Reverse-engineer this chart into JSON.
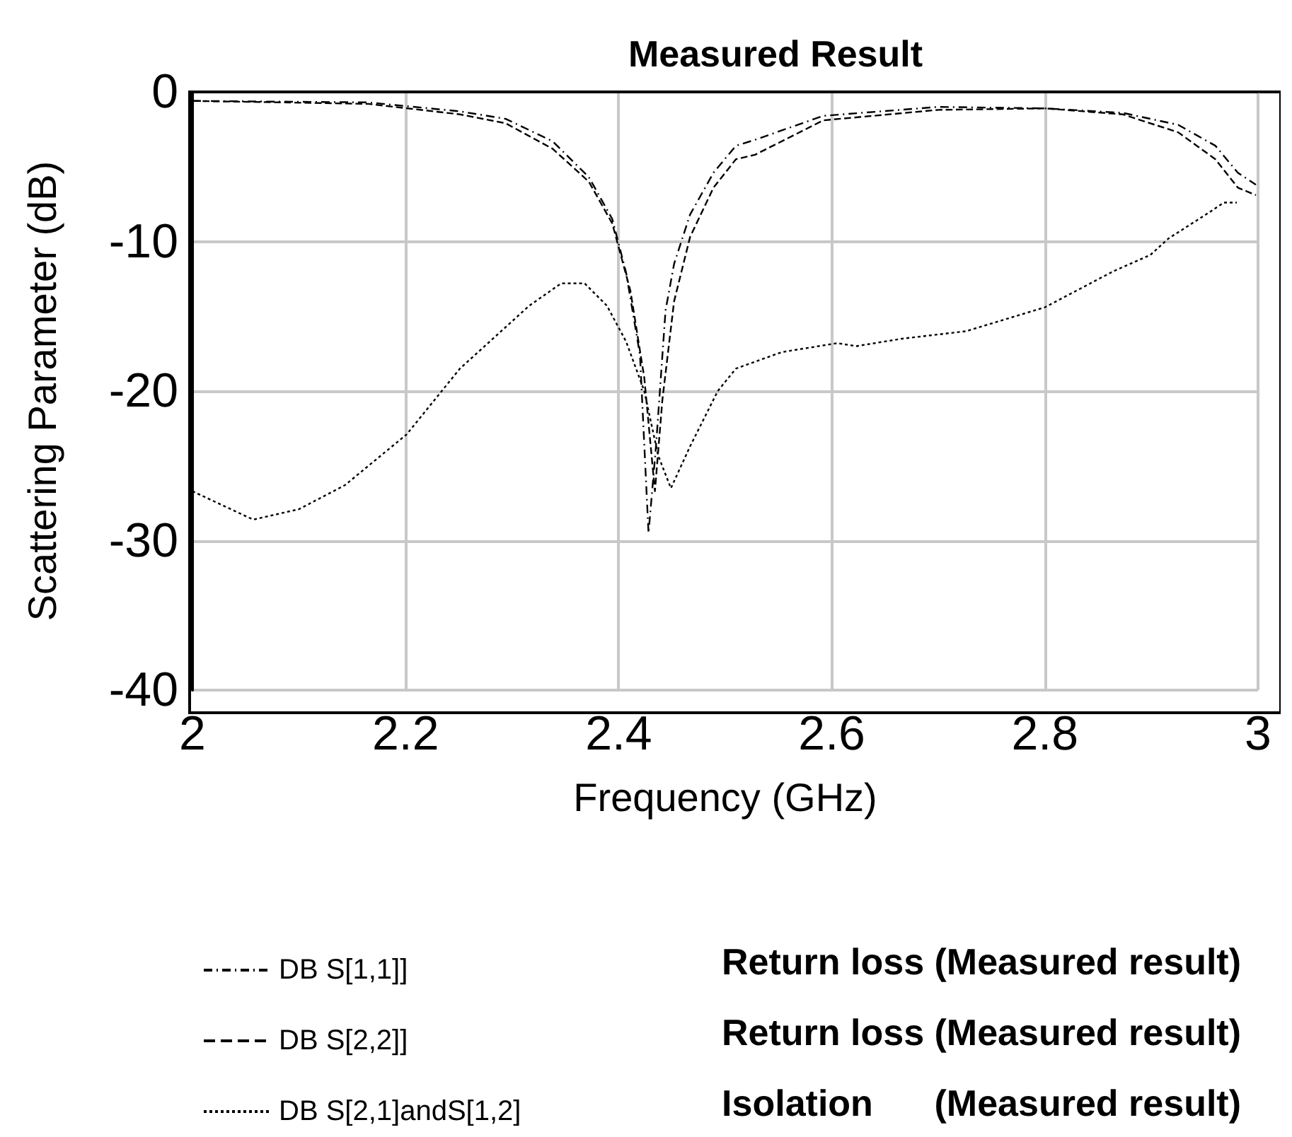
{
  "chart_data": {
    "type": "line",
    "title": "Measured Result",
    "xlabel": "Frequency (GHz)",
    "ylabel": "Scattering Parameter (dB)",
    "xlim": [
      2,
      3
    ],
    "xticks": [
      2,
      2.2,
      2.4,
      2.6,
      2.8,
      3
    ],
    "ylim": [
      -40,
      0
    ],
    "yticks": [
      -40,
      -30,
      -20,
      -10,
      0
    ],
    "grid": true,
    "legend": "bottom",
    "marker": "none",
    "series": [
      {
        "name": "DB S[1,1]]",
        "color": "#000000",
        "line_style": "dashed",
        "x": [
          2.0,
          2.165,
          2.251,
          2.294,
          2.338,
          2.372,
          2.394,
          2.407,
          2.42,
          2.428,
          2.435,
          2.444,
          2.452,
          2.467,
          2.489,
          2.51,
          2.528,
          2.592,
          2.7,
          2.8,
          2.873,
          2.925,
          2.96,
          2.981,
          2.998
        ],
        "values": [
          -0.6,
          -0.7,
          -1.3,
          -1.8,
          -3.3,
          -5.7,
          -8.5,
          -12.1,
          -17.6,
          -29.5,
          -23.7,
          -14.6,
          -11.5,
          -8.2,
          -5.4,
          -3.6,
          -3.2,
          -1.6,
          -1.0,
          -1.1,
          -1.4,
          -2.2,
          -3.6,
          -5.4,
          -6.2
        ]
      },
      {
        "name": "DB S[2,2]]",
        "color": "#000000",
        "line_style": "dashed",
        "x": [
          2.0,
          2.165,
          2.251,
          2.294,
          2.338,
          2.372,
          2.394,
          2.411,
          2.424,
          2.434,
          2.441,
          2.452,
          2.467,
          2.489,
          2.51,
          2.528,
          2.592,
          2.7,
          2.8,
          2.873,
          2.925,
          2.96,
          2.981,
          2.998
        ],
        "values": [
          -0.6,
          -0.8,
          -1.5,
          -2.1,
          -3.8,
          -6.0,
          -8.8,
          -13.3,
          -19.1,
          -26.7,
          -20.6,
          -14.0,
          -9.7,
          -6.4,
          -4.5,
          -4.2,
          -1.9,
          -1.2,
          -1.1,
          -1.5,
          -2.7,
          -4.5,
          -6.4,
          -6.9
        ]
      },
      {
        "name": "DB S[2,1]andS[1,2]",
        "color": "#000000",
        "line_style": "dotted",
        "x": [
          2.0,
          2.057,
          2.1,
          2.143,
          2.201,
          2.251,
          2.316,
          2.346,
          2.368,
          2.389,
          2.407,
          2.424,
          2.437,
          2.449,
          2.467,
          2.493,
          2.51,
          2.553,
          2.605,
          2.623,
          2.666,
          2.726,
          2.8,
          2.864,
          2.899,
          2.916,
          2.951,
          2.968,
          2.98
        ],
        "values": [
          -26.7,
          -28.6,
          -27.9,
          -26.3,
          -22.9,
          -18.5,
          -14.3,
          -12.8,
          -12.8,
          -14.3,
          -16.7,
          -20.0,
          -24.3,
          -26.5,
          -23.7,
          -20.0,
          -18.5,
          -17.4,
          -16.8,
          -17.0,
          -16.5,
          -16.0,
          -14.4,
          -12.0,
          -10.9,
          -9.8,
          -8.2,
          -7.4,
          -7.4
        ]
      }
    ],
    "annotations": [
      "Return loss (Measured result)",
      "Return loss (Measured result)",
      "Isolation      (Measured result)"
    ]
  }
}
